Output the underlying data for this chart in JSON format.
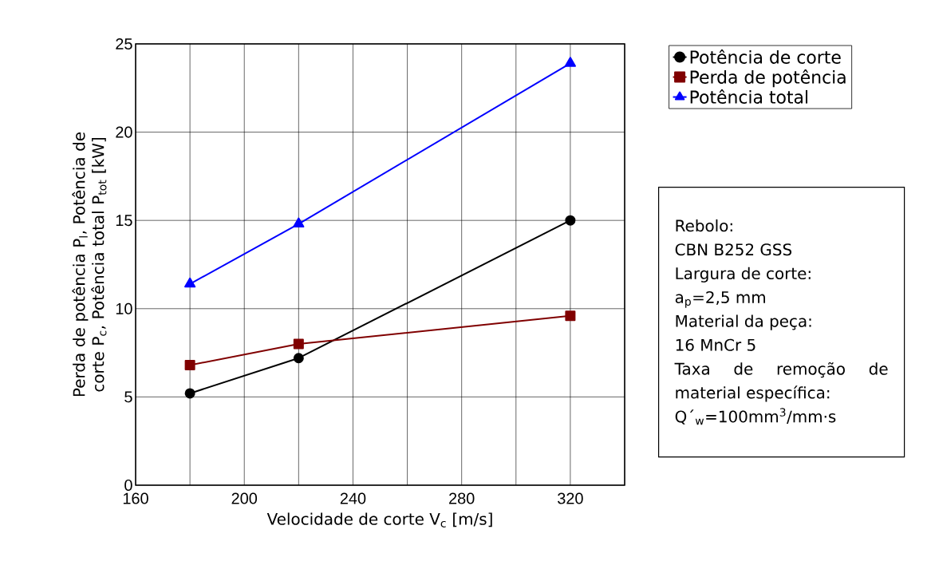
{
  "chart_data": {
    "type": "line",
    "xlabel": "Velocidade de corte V$_{c}$ [m/s]",
    "ylabel": "Perda de potência P$_{l}$, Potência de corte P$_{c}$, Potência total P$_{tot}$ [kW]",
    "x": [
      180,
      220,
      320
    ],
    "series": [
      {
        "name": "Potência de corte",
        "color": "#000000",
        "marker": "circle",
        "values": [
          5.2,
          7.2,
          15.0
        ]
      },
      {
        "name": "Perda de potência",
        "color": "#800000",
        "marker": "square",
        "values": [
          6.8,
          8.0,
          9.6
        ]
      },
      {
        "name": "Potência total",
        "color": "#0000ff",
        "marker": "triangle",
        "values": [
          11.4,
          14.8,
          23.9
        ]
      }
    ],
    "xlim": [
      160,
      340
    ],
    "xticks": [
      160,
      {
        "value": 180,
        "label": null
      },
      200,
      {
        "value": 220,
        "label": null
      },
      240,
      {
        "value": 260,
        "label": null
      },
      280,
      {
        "value": 300,
        "label": null
      },
      320,
      {
        "value": 340,
        "label": null
      }
    ],
    "ylim": [
      0,
      25
    ],
    "yticks": [
      0,
      5,
      10,
      15,
      20,
      25
    ],
    "grid": true,
    "legend": "top right",
    "line_style": "solid",
    "annotations": [
      "Rebolo:",
      "CBN B252 GSS",
      "Largura de corte:",
      "a$_{p}$=2,5 mm",
      "Material da peça:",
      "16 MnCr 5",
      "Taxa de remoção de material específica:",
      "Q´$_{w}$=100mm$^{3}$/mm·s"
    ]
  }
}
